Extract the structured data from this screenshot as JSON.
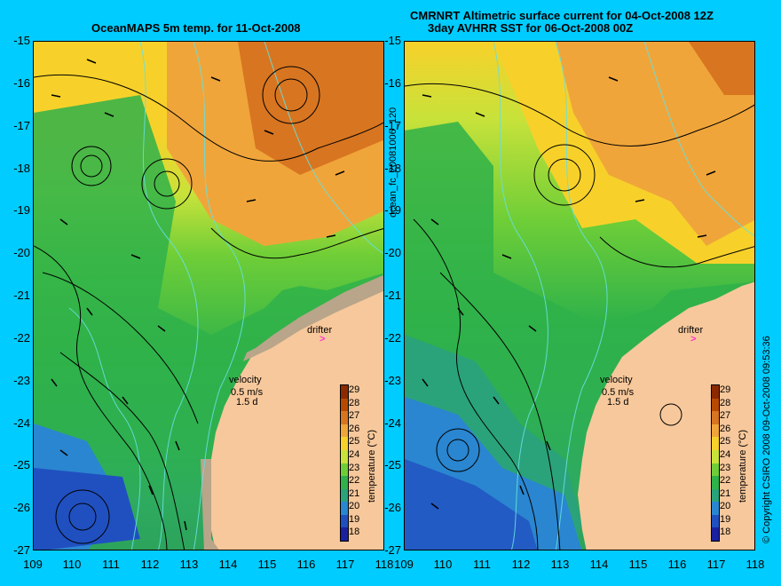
{
  "titles": {
    "left": "OceanMAPS 5m temp. for 11-Oct-2008",
    "right_line1": "CMRNRT Altimetric surface current for 04-Oct-2008 12Z",
    "right_line2": "3day AVHRR SST for 06-Oct-2008 00Z"
  },
  "side_labels": {
    "middle": "ocean_fc_20081006_120",
    "right": "© Copyright CSIRO 2008   09-Oct-2008 09:53:36"
  },
  "axes": {
    "lat_ticks": [
      "-15",
      "-16",
      "-17",
      "-18",
      "-19",
      "-20",
      "-21",
      "-22",
      "-23",
      "-24",
      "-25",
      "-26",
      "-27"
    ],
    "lon_ticks": [
      "109",
      "110",
      "111",
      "112",
      "113",
      "114",
      "115",
      "116",
      "117",
      "118"
    ]
  },
  "legend": {
    "velocity_label": "velocity",
    "velocity_scale": "0.5 m/s",
    "velocity_time": "1.5 d",
    "drifter_label": "drifter",
    "drifter_symbol": ">",
    "colorbar_title": "temperature (°C)",
    "colorbar_ticks": [
      "29",
      "28",
      "27",
      "26",
      "25",
      "24",
      "23",
      "22",
      "21",
      "20",
      "19",
      "18"
    ],
    "colorbar_colors": [
      "#8b2a00",
      "#b84a00",
      "#d87520",
      "#f0a53a",
      "#f7d12a",
      "#c8e23a",
      "#6fce37",
      "#2fb24a",
      "#2aa37a",
      "#2a86d0",
      "#2050c0",
      "#1a20a0"
    ]
  },
  "colors": {
    "background": "#00ccff",
    "land": "#f7c89b",
    "shelf": "#b8a58a",
    "isobath": "#66e0e0",
    "drifter": "#ff33cc"
  }
}
